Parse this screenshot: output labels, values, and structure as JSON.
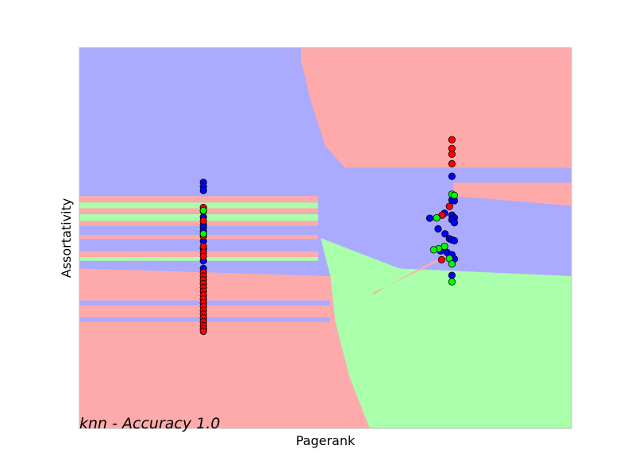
{
  "chart_data": {
    "type": "scatter",
    "title": "",
    "xlabel": "Pagerank",
    "ylabel": "Assortativity",
    "annotation": "knn - Accuracy 1.0",
    "xlim": [
      0,
      1
    ],
    "ylim": [
      0,
      1
    ],
    "grid": false,
    "ticks": "none",
    "class_colors": {
      "red": {
        "region": "#FFAAAA",
        "point": "#FF0000"
      },
      "green": {
        "region": "#AAFFAA",
        "point": "#00FF00"
      },
      "blue": {
        "region": "#AAAAFF",
        "point": "#0000FF"
      }
    },
    "decision_regions": [
      {
        "cls": "blue",
        "poly": [
          [
            0,
            1
          ],
          [
            0.45,
            1
          ],
          [
            0.45,
            0.67
          ],
          [
            1,
            0.67
          ],
          [
            1,
            0.42
          ],
          [
            0.65,
            0.42
          ],
          [
            0.49,
            0.5
          ],
          [
            0.49,
            0.6
          ],
          [
            0,
            0.6
          ]
        ]
      },
      {
        "cls": "red",
        "poly": [
          [
            0.45,
            1
          ],
          [
            1,
            1
          ],
          [
            1,
            0.685
          ],
          [
            0.54,
            0.685
          ],
          [
            0.5,
            0.74
          ],
          [
            0.47,
            0.86
          ],
          [
            0.45,
            0.97
          ]
        ]
      },
      {
        "cls": "red",
        "poly": [
          [
            0.76,
            0.645
          ],
          [
            1,
            0.645
          ],
          [
            1,
            0.585
          ],
          [
            0.76,
            0.61
          ]
        ]
      },
      {
        "cls": "green",
        "poly": [
          [
            0.49,
            0.5
          ],
          [
            0.65,
            0.42
          ],
          [
            1,
            0.4
          ],
          [
            1,
            0
          ],
          [
            0.59,
            0
          ],
          [
            0.55,
            0.13
          ],
          [
            0.52,
            0.28
          ],
          [
            0.51,
            0.4
          ]
        ]
      },
      {
        "cls": "red",
        "poly": [
          [
            0,
            0.42
          ],
          [
            0.51,
            0.4
          ],
          [
            0.52,
            0.28
          ],
          [
            0.55,
            0.13
          ],
          [
            0.59,
            0
          ],
          [
            0,
            0
          ]
        ]
      },
      {
        "cls": "red",
        "poly": [
          [
            0.595,
            0.355
          ],
          [
            0.74,
            0.445
          ],
          [
            0.75,
            0.46
          ],
          [
            0.62,
            0.37
          ],
          [
            0.6,
            0.352
          ]
        ]
      }
    ],
    "bands": [
      {
        "cls": "red",
        "y0": 0.593,
        "y1": 0.61
      },
      {
        "cls": "green",
        "y0": 0.578,
        "y1": 0.593
      },
      {
        "cls": "red",
        "y0": 0.565,
        "y1": 0.578
      },
      {
        "cls": "green",
        "y0": 0.545,
        "y1": 0.563
      },
      {
        "cls": "red",
        "y0": 0.532,
        "y1": 0.545
      },
      {
        "cls": "red",
        "y0": 0.497,
        "y1": 0.508
      },
      {
        "cls": "red",
        "y0": 0.45,
        "y1": 0.465
      },
      {
        "cls": "green",
        "y0": 0.44,
        "y1": 0.45
      },
      {
        "cls": "blue",
        "y0": 0.323,
        "y1": 0.336
      },
      {
        "cls": "blue",
        "y0": 0.28,
        "y1": 0.292
      }
    ],
    "series": [
      {
        "cls": "blue",
        "points": [
          [
            0.252,
            0.646
          ],
          [
            0.252,
            0.635
          ],
          [
            0.252,
            0.625
          ],
          [
            0.252,
            0.555
          ],
          [
            0.252,
            0.535
          ],
          [
            0.252,
            0.528
          ],
          [
            0.252,
            0.518
          ],
          [
            0.252,
            0.492
          ],
          [
            0.252,
            0.472
          ],
          [
            0.252,
            0.44
          ],
          [
            0.252,
            0.42
          ],
          [
            0.757,
            0.662
          ],
          [
            0.757,
            0.6
          ],
          [
            0.762,
            0.598
          ],
          [
            0.742,
            0.565
          ],
          [
            0.757,
            0.56
          ],
          [
            0.762,
            0.553
          ],
          [
            0.757,
            0.548
          ],
          [
            0.712,
            0.552
          ],
          [
            0.762,
            0.54
          ],
          [
            0.729,
            0.524
          ],
          [
            0.743,
            0.511
          ],
          [
            0.752,
            0.498
          ],
          [
            0.757,
            0.495
          ],
          [
            0.762,
            0.493
          ],
          [
            0.734,
            0.466
          ],
          [
            0.747,
            0.462
          ],
          [
            0.757,
            0.456
          ],
          [
            0.762,
            0.445
          ],
          [
            0.757,
            0.402
          ]
        ]
      },
      {
        "cls": "red",
        "points": [
          [
            0.252,
            0.58
          ],
          [
            0.252,
            0.57
          ],
          [
            0.252,
            0.545
          ],
          [
            0.252,
            0.505
          ],
          [
            0.252,
            0.478
          ],
          [
            0.252,
            0.462
          ],
          [
            0.252,
            0.452
          ],
          [
            0.252,
            0.41
          ],
          [
            0.252,
            0.4
          ],
          [
            0.252,
            0.39
          ],
          [
            0.252,
            0.38
          ],
          [
            0.252,
            0.37
          ],
          [
            0.252,
            0.36
          ],
          [
            0.252,
            0.35
          ],
          [
            0.252,
            0.34
          ],
          [
            0.252,
            0.33
          ],
          [
            0.252,
            0.32
          ],
          [
            0.252,
            0.31
          ],
          [
            0.252,
            0.3
          ],
          [
            0.252,
            0.29
          ],
          [
            0.252,
            0.28
          ],
          [
            0.252,
            0.27
          ],
          [
            0.252,
            0.262
          ],
          [
            0.252,
            0.255
          ],
          [
            0.757,
            0.758
          ],
          [
            0.757,
            0.735
          ],
          [
            0.757,
            0.72
          ],
          [
            0.757,
            0.695
          ],
          [
            0.752,
            0.583
          ],
          [
            0.737,
            0.56
          ],
          [
            0.736,
            0.443
          ]
        ]
      },
      {
        "cls": "green",
        "points": [
          [
            0.252,
            0.572
          ],
          [
            0.252,
            0.511
          ],
          [
            0.757,
            0.615
          ],
          [
            0.762,
            0.612
          ],
          [
            0.726,
            0.553
          ],
          [
            0.742,
            0.478
          ],
          [
            0.73,
            0.472
          ],
          [
            0.72,
            0.469
          ],
          [
            0.752,
            0.446
          ],
          [
            0.757,
            0.432
          ],
          [
            0.757,
            0.385
          ]
        ]
      }
    ]
  }
}
